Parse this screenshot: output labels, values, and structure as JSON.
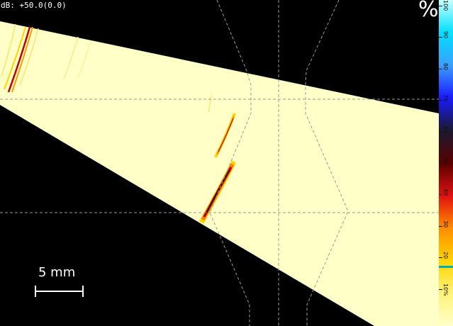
{
  "gain_readout": "dB: +50.0(0.0)",
  "palette": {
    "unit_symbol": "%",
    "ticks": [
      {
        "label": "100",
        "value": 100
      },
      {
        "label": "90",
        "value": 90
      },
      {
        "label": "80",
        "value": 80
      },
      {
        "label": "70",
        "value": 70
      },
      {
        "label": "60",
        "value": 60
      },
      {
        "label": "50",
        "value": 50
      },
      {
        "label": "40",
        "value": 40
      },
      {
        "label": "30",
        "value": 30
      },
      {
        "label": "20",
        "value": 20
      },
      {
        "label": "10%",
        "value": 10
      }
    ],
    "colors": [
      "#ffffc8",
      "#fff27a",
      "#ffd400",
      "#ff8c00",
      "#e01010",
      "#5a0000",
      "#1a1a30",
      "#1a1aff",
      "#3aa0ff",
      "#00e0ff",
      "#c8ffff"
    ],
    "marker_value": 20
  },
  "scalebar": {
    "label": "5 mm"
  },
  "sector_fill": "#ffffc8",
  "grid_color": "#9a9a9a"
}
